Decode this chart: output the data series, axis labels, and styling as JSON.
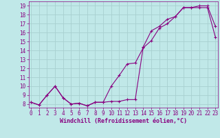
{
  "xlabel": "Windchill (Refroidissement éolien,°C)",
  "bg_color": "#c0e8e8",
  "grid_color": "#a8d0d0",
  "line_color": "#880080",
  "x_ticks": [
    0,
    1,
    2,
    3,
    4,
    5,
    6,
    7,
    8,
    9,
    10,
    11,
    12,
    13,
    14,
    15,
    16,
    17,
    18,
    19,
    20,
    21,
    22,
    23
  ],
  "y_ticks": [
    8,
    9,
    10,
    11,
    12,
    13,
    14,
    15,
    16,
    17,
    18,
    19
  ],
  "xlim": [
    -0.3,
    23.3
  ],
  "ylim": [
    7.6,
    19.5
  ],
  "line1_x": [
    0,
    1,
    2,
    3,
    4,
    5,
    6,
    7,
    8,
    9,
    10,
    11,
    12,
    13,
    14,
    15,
    16,
    17,
    18,
    19,
    20,
    21,
    22,
    23
  ],
  "line1_y": [
    8.2,
    7.9,
    9.0,
    10.0,
    8.7,
    8.0,
    8.1,
    7.8,
    8.2,
    8.2,
    8.3,
    8.3,
    8.5,
    8.5,
    14.4,
    16.2,
    16.7,
    17.5,
    17.8,
    18.8,
    18.8,
    19.0,
    19.0,
    16.7
  ],
  "line2_x": [
    0,
    1,
    2,
    3,
    4,
    5,
    6,
    7,
    8,
    9,
    10,
    11,
    12,
    13,
    14,
    15,
    16,
    17,
    18,
    19,
    20,
    21,
    22,
    23
  ],
  "line2_y": [
    8.2,
    7.9,
    9.0,
    10.0,
    8.7,
    8.0,
    8.1,
    7.8,
    8.2,
    8.2,
    10.0,
    11.2,
    12.5,
    12.6,
    14.3,
    15.1,
    16.5,
    17.0,
    17.8,
    18.8,
    18.8,
    18.8,
    18.8,
    15.5
  ],
  "tick_fontsize": 5.5,
  "xlabel_fontsize": 6.0
}
